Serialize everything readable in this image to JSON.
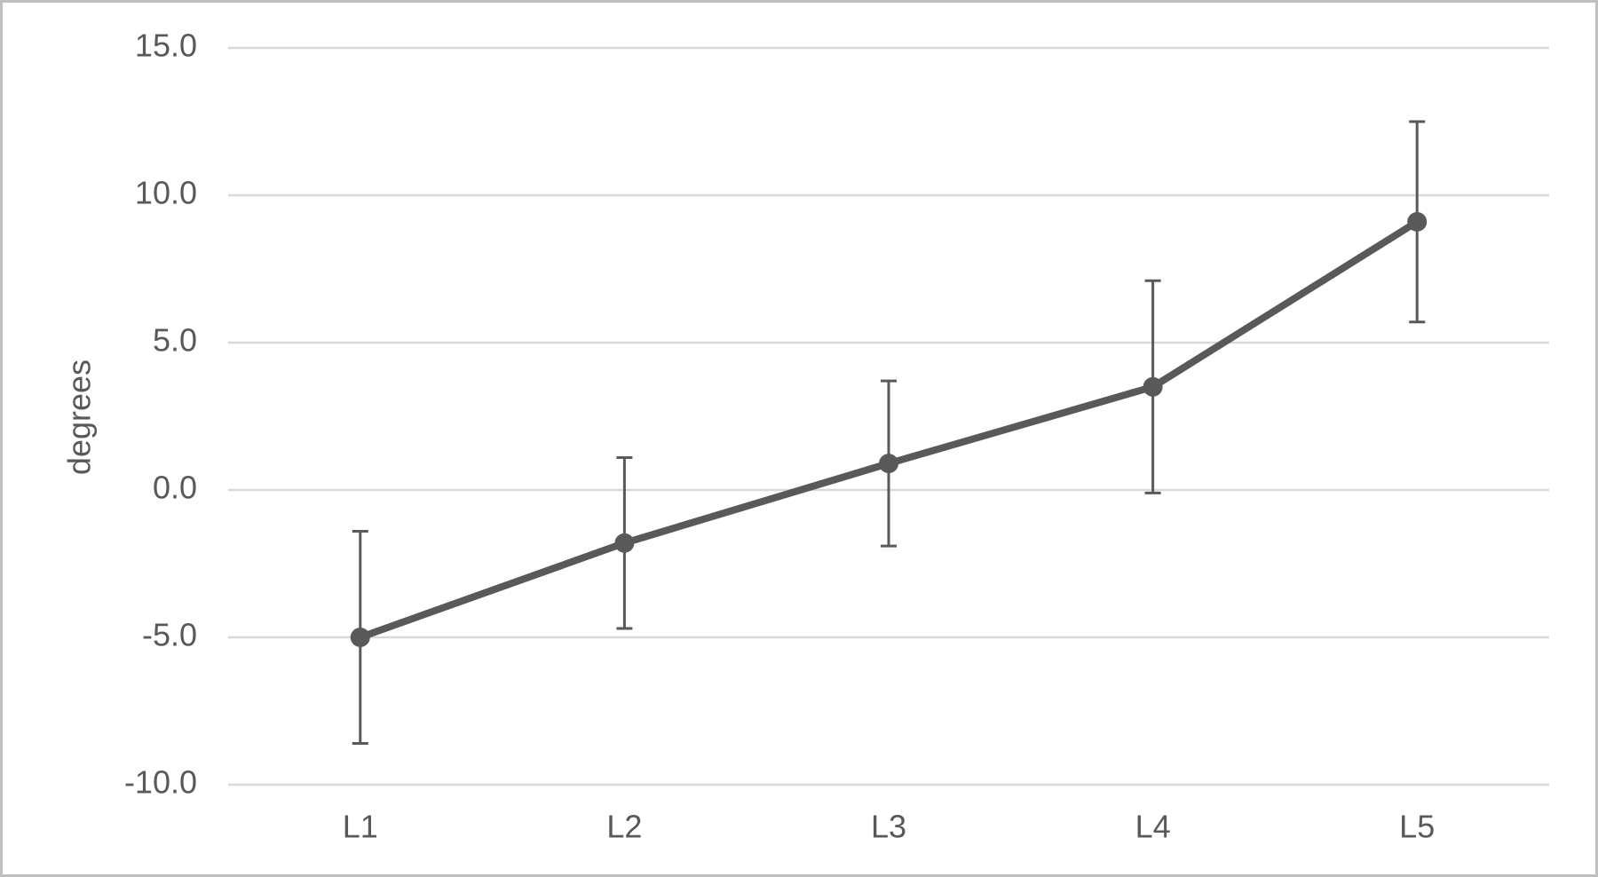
{
  "chart_data": {
    "type": "line",
    "y_label": "degrees",
    "categories": [
      "L1",
      "L2",
      "L3",
      "L4",
      "L5"
    ],
    "series": [
      {
        "color": "#595959",
        "values": [
          -5.0,
          -1.8,
          0.9,
          3.5,
          9.1
        ],
        "errors": [
          3.6,
          2.9,
          2.8,
          3.6,
          3.4
        ]
      }
    ],
    "ylim": [
      -10,
      15
    ],
    "yticks": [
      {
        "value": -10,
        "label": "-10.0"
      },
      {
        "value": -5,
        "label": "-5.0"
      },
      {
        "value": 0,
        "label": "0.0"
      },
      {
        "value": 5,
        "label": "5.0"
      },
      {
        "value": 10,
        "label": "10.0"
      },
      {
        "value": 15,
        "label": "15.0"
      }
    ],
    "grid": true
  }
}
